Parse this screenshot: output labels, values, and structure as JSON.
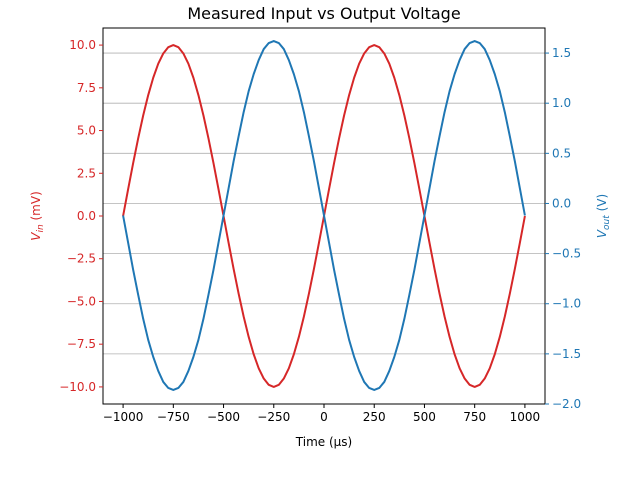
{
  "chart_data": {
    "type": "line",
    "title": "Measured Input vs Output Voltage",
    "xlabel": "Time (μs)",
    "y_left_label": {
      "base": "V",
      "sub": "in",
      "unit": " (mV)"
    },
    "y_right_label": {
      "base": "V",
      "sub": "out",
      "unit": " (V)"
    },
    "xlim": [
      -1100,
      1100
    ],
    "y_left_lim": [
      -11,
      11
    ],
    "y_right_lim": [
      -2.0,
      1.75
    ],
    "x_ticks": [
      -1000,
      -750,
      -500,
      -250,
      0,
      250,
      500,
      750,
      1000
    ],
    "x_tick_labels": [
      "−1000",
      "−750",
      "−500",
      "−250",
      "0",
      "250",
      "500",
      "750",
      "1000"
    ],
    "y_left_ticks": [
      -10,
      -7.5,
      -5,
      -2.5,
      0,
      2.5,
      5,
      7.5,
      10
    ],
    "y_left_tick_labels": [
      "−10.0",
      "−7.5",
      "−5.0",
      "−2.5",
      "0.0",
      "2.5",
      "5.0",
      "7.5",
      "10.0"
    ],
    "y_right_ticks": [
      -2.0,
      -1.5,
      -1.0,
      -0.5,
      0.0,
      0.5,
      1.0,
      1.5
    ],
    "y_right_tick_labels": [
      "−2.0",
      "−1.5",
      "−1.0",
      "−0.5",
      "0.0",
      "0.5",
      "1.0",
      "1.5"
    ],
    "grid": "horizontal lines at right-axis ticks",
    "colors": {
      "vin": "#d62728",
      "vout": "#1f77b4",
      "grid": "#b0b0b0",
      "axis": "#000000"
    },
    "series": [
      {
        "axis": "left",
        "x": [
          -1000,
          -975,
          -950,
          -925,
          -900,
          -875,
          -850,
          -825,
          -800,
          -775,
          -750,
          -725,
          -700,
          -675,
          -650,
          -625,
          -600,
          -575,
          -550,
          -525,
          -500,
          -475,
          -450,
          -425,
          -400,
          -375,
          -350,
          -325,
          -300,
          -275,
          -250,
          -225,
          -200,
          -175,
          -150,
          -125,
          -100,
          -75,
          -50,
          -25,
          0,
          25,
          50,
          75,
          100,
          125,
          150,
          175,
          200,
          225,
          250,
          275,
          300,
          325,
          350,
          375,
          400,
          425,
          450,
          475,
          500,
          525,
          550,
          575,
          600,
          625,
          650,
          675,
          700,
          725,
          750,
          775,
          800,
          825,
          850,
          875,
          900,
          925,
          950,
          975,
          1000
        ],
        "values": [
          0.0,
          1.56,
          3.09,
          4.54,
          5.88,
          7.07,
          8.09,
          8.91,
          9.51,
          9.88,
          10.0,
          9.88,
          9.51,
          8.91,
          8.09,
          7.07,
          5.88,
          4.54,
          3.09,
          1.56,
          0.0,
          -1.56,
          -3.09,
          -4.54,
          -5.88,
          -7.07,
          -8.09,
          -8.91,
          -9.51,
          -9.88,
          -10.0,
          -9.88,
          -9.51,
          -8.91,
          -8.09,
          -7.07,
          -5.88,
          -4.54,
          -3.09,
          -1.56,
          0.0,
          1.56,
          3.09,
          4.54,
          5.88,
          7.07,
          8.09,
          8.91,
          9.51,
          9.88,
          10.0,
          9.88,
          9.51,
          8.91,
          8.09,
          7.07,
          5.88,
          4.54,
          3.09,
          1.56,
          0.0,
          -1.56,
          -3.09,
          -4.54,
          -5.88,
          -7.07,
          -8.09,
          -8.91,
          -9.51,
          -9.88,
          -10.0,
          -9.88,
          -9.51,
          -8.91,
          -8.09,
          -7.07,
          -5.88,
          -4.54,
          -3.09,
          -1.56,
          0.0
        ]
      },
      {
        "axis": "right",
        "x": [
          -1000,
          -975,
          -950,
          -925,
          -900,
          -875,
          -850,
          -825,
          -800,
          -775,
          -750,
          -725,
          -700,
          -675,
          -650,
          -625,
          -600,
          -575,
          -550,
          -525,
          -500,
          -475,
          -450,
          -425,
          -400,
          -375,
          -350,
          -325,
          -300,
          -275,
          -250,
          -225,
          -200,
          -175,
          -150,
          -125,
          -100,
          -75,
          -50,
          -25,
          0,
          25,
          50,
          75,
          100,
          125,
          150,
          175,
          200,
          225,
          250,
          275,
          300,
          325,
          350,
          375,
          400,
          425,
          450,
          475,
          500,
          525,
          550,
          575,
          600,
          625,
          650,
          675,
          700,
          725,
          750,
          775,
          800,
          825,
          850,
          875,
          900,
          925,
          950,
          975,
          1000
        ],
        "values": [
          -0.12,
          -0.39,
          -0.66,
          -0.91,
          -1.15,
          -1.36,
          -1.53,
          -1.67,
          -1.78,
          -1.84,
          -1.86,
          -1.84,
          -1.78,
          -1.67,
          -1.53,
          -1.36,
          -1.15,
          -0.91,
          -0.66,
          -0.39,
          -0.12,
          0.15,
          0.42,
          0.67,
          0.91,
          1.12,
          1.29,
          1.43,
          1.54,
          1.6,
          1.62,
          1.6,
          1.54,
          1.43,
          1.29,
          1.12,
          0.91,
          0.67,
          0.42,
          0.15,
          -0.12,
          -0.39,
          -0.66,
          -0.91,
          -1.15,
          -1.36,
          -1.53,
          -1.67,
          -1.78,
          -1.84,
          -1.86,
          -1.84,
          -1.78,
          -1.67,
          -1.53,
          -1.36,
          -1.15,
          -0.91,
          -0.66,
          -0.39,
          -0.12,
          0.15,
          0.42,
          0.67,
          0.91,
          1.12,
          1.29,
          1.43,
          1.54,
          1.6,
          1.62,
          1.6,
          1.54,
          1.43,
          1.29,
          1.12,
          0.91,
          0.67,
          0.42,
          0.15,
          -0.12
        ]
      }
    ]
  }
}
